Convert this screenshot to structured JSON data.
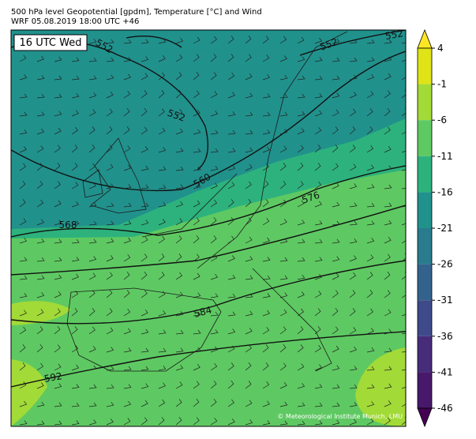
{
  "header": {
    "title": "500 hPa level Geopotential [gpdm], Temperature [°C] and Wind",
    "subtitle": "WRF 05.08.2019 18:00 UTC +46"
  },
  "map": {
    "time_label": "16 UTC Wed",
    "contour_labels": [
      552,
      552,
      552,
      552,
      560,
      568,
      576,
      584,
      592
    ],
    "credit": "© Meteorological Institute Munich, LMU"
  },
  "colorbar": {
    "ticks": [
      4,
      -1,
      -6,
      -11,
      -16,
      -21,
      -26,
      -31,
      -36,
      -41,
      -46
    ],
    "colors": [
      "#fde725",
      "#dfe318",
      "#a2da37",
      "#5ec962",
      "#2db27d",
      "#21918c",
      "#287c8e",
      "#33638d",
      "#3e4a89",
      "#472c7a",
      "#48186a",
      "#440154"
    ]
  }
}
